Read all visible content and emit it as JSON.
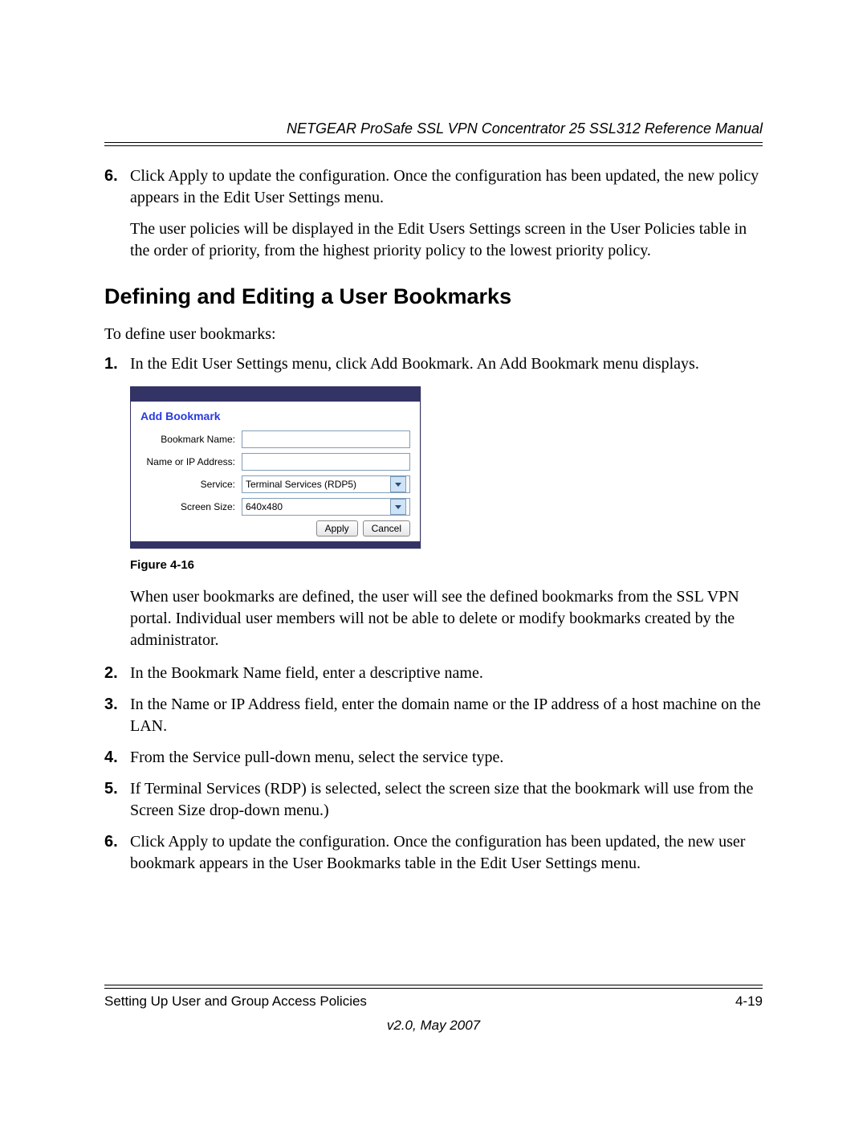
{
  "header": {
    "title": "NETGEAR ProSafe SSL VPN Concentrator 25 SSL312 Reference Manual"
  },
  "top_list": {
    "item6": {
      "num": "6.",
      "text": "Click Apply to update the configuration. Once the configuration has been updated, the new policy appears in the Edit User Settings menu."
    },
    "followup": "The user policies will be displayed in the Edit Users Settings screen in the User Policies table in the order of priority, from the highest priority policy to the lowest priority policy."
  },
  "heading": "Defining and Editing a User Bookmarks",
  "intro": "To define user bookmarks:",
  "steps": {
    "s1": {
      "num": "1.",
      "text": "In the Edit User Settings menu, click Add Bookmark. An Add Bookmark menu displays."
    },
    "s1_after": "When user bookmarks are defined, the user will see the defined bookmarks from the SSL VPN portal. Individual user members will not be able to delete or modify bookmarks created by the administrator.",
    "s2": {
      "num": "2.",
      "text": "In the Bookmark Name field, enter a descriptive name."
    },
    "s3": {
      "num": "3.",
      "text": "In the Name or IP Address field, enter the domain name or the IP address of a host machine on the LAN."
    },
    "s4": {
      "num": "4.",
      "text": "From the Service pull-down menu, select the service type."
    },
    "s5": {
      "num": "5.",
      "text": "If Terminal Services (RDP) is selected, select the screen size that the bookmark will use from the Screen Size drop-down menu.)"
    },
    "s6": {
      "num": "6.",
      "text": "Click Apply to update the configuration. Once the configuration has been updated, the new user bookmark appears in the User Bookmarks table in the Edit User Settings menu."
    }
  },
  "dialog": {
    "title": "Add Bookmark",
    "labels": {
      "bookmark_name": "Bookmark Name:",
      "name_ip": "Name or IP Address:",
      "service": "Service:",
      "screen_size": "Screen Size:"
    },
    "values": {
      "bookmark_name": "",
      "name_ip": "",
      "service": "Terminal Services (RDP5)",
      "screen_size": "640x480"
    },
    "buttons": {
      "apply": "Apply",
      "cancel": "Cancel"
    },
    "colors": {
      "bar": "#333366",
      "link": "#2a3ae0",
      "input_border": "#7f9db9",
      "dropdown_bg": "#cfe3f6"
    }
  },
  "figure_caption": "Figure 4-16",
  "footer": {
    "left": "Setting Up User and Group Access Policies",
    "right": "4-19",
    "version": "v2.0, May 2007"
  }
}
